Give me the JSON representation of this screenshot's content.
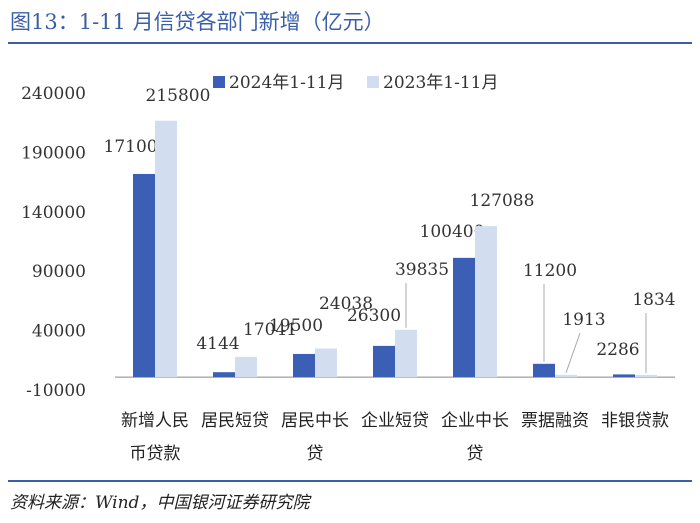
{
  "title": "图13：1-11 月信贷各部门新增（亿元）",
  "source": "资料来源：Wind，中国银河证券研究院",
  "chart_data": {
    "type": "bar",
    "categories": [
      [
        "新增人民",
        "币贷款"
      ],
      [
        "居民短贷"
      ],
      [
        "居民中长",
        "贷"
      ],
      [
        "企业短贷"
      ],
      [
        "企业中长",
        "贷"
      ],
      [
        "票据融资"
      ],
      [
        "非银贷款"
      ]
    ],
    "series": [
      {
        "name": "2024年1-11月",
        "color": "#3a5fb4",
        "values": [
          171000,
          4144,
          19500,
          26300,
          100400,
          11200,
          2286
        ],
        "labels": [
          "171000",
          "4144",
          "19500",
          "26300",
          "100400",
          "11200",
          "2286"
        ]
      },
      {
        "name": "2023年1-11月",
        "color": "#d2ddf0",
        "values": [
          215800,
          17041,
          24038,
          39835,
          127088,
          1913,
          1834
        ],
        "labels": [
          "215800",
          "17041",
          "24038",
          "39835",
          "127088",
          "1913",
          "1834"
        ]
      }
    ],
    "yticks": [
      240000,
      190000,
      140000,
      90000,
      40000,
      -10000
    ],
    "ytick_labels": [
      "240000",
      "190000",
      "140000",
      "90000",
      "40000",
      "-10000"
    ],
    "ylim": [
      -10000,
      240000
    ],
    "grid": false,
    "legend_position": "top-center"
  }
}
